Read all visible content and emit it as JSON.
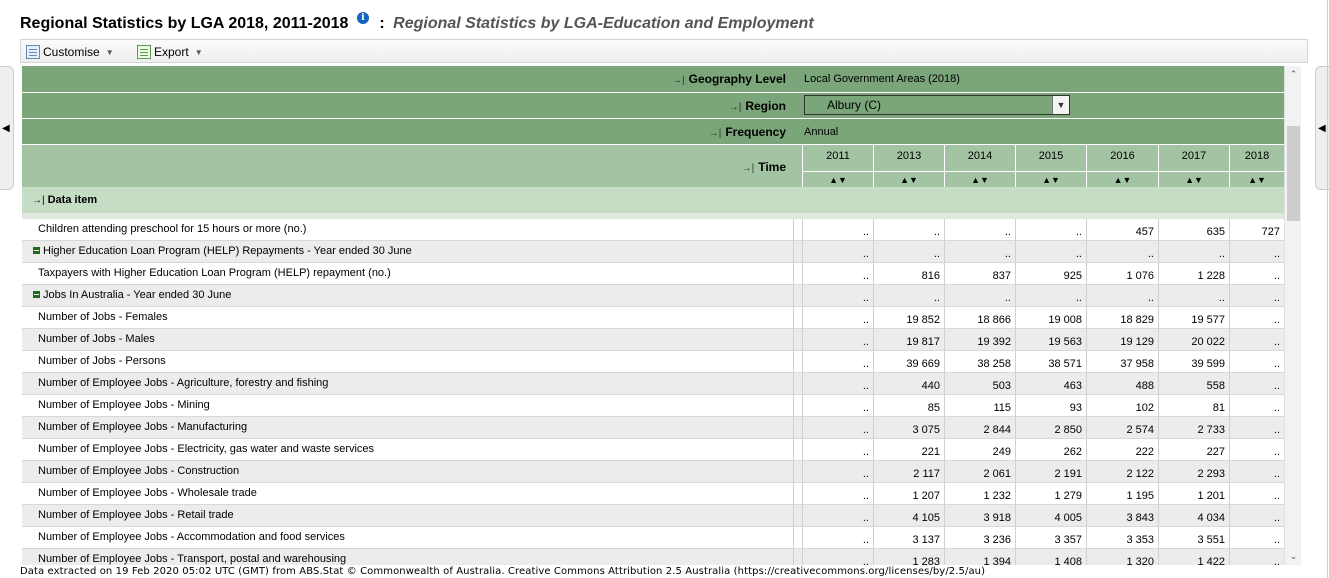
{
  "title": {
    "main": "Regional Statistics by LGA 2018, 2011-2018",
    "separator": ":",
    "subtitle": "Regional Statistics by LGA-Education and Employment",
    "info_icon": "i"
  },
  "toolbar": {
    "customise_label": "Customise",
    "export_label": "Export",
    "caret": "▼"
  },
  "side_tabs": {
    "left_arrow": "◀",
    "right_arrow": "◀"
  },
  "header": {
    "pin": "→|",
    "geography_label": "Geography Level",
    "geography_value": "Local Government Areas (2018)",
    "region_label": "Region",
    "region_value": "Albury (C)",
    "region_arrow": "▼",
    "frequency_label": "Frequency",
    "frequency_value": "Annual",
    "time_label": "Time",
    "sort_glyph": "▲▼",
    "years": [
      "2011",
      "2013",
      "2014",
      "2015",
      "2016",
      "2017",
      "2018"
    ]
  },
  "data_item_label": "Data item",
  "rows": [
    {
      "name": "Children attending preschool for 15 hours or more (no.)",
      "group": false,
      "values": [
        "..",
        "..",
        "..",
        "..",
        "457",
        "635",
        "727"
      ]
    },
    {
      "name": "Higher Education Loan Program (HELP) Repayments - Year ended 30 June",
      "group": true,
      "values": [
        "..",
        "..",
        "..",
        "..",
        "..",
        "..",
        ".."
      ]
    },
    {
      "name": "Taxpayers with Higher Education Loan Program (HELP) repayment (no.)",
      "group": false,
      "values": [
        "..",
        "816",
        "837",
        "925",
        "1 076",
        "1 228",
        ".."
      ]
    },
    {
      "name": "Jobs In Australia - Year ended 30 June",
      "group": true,
      "values": [
        "..",
        "..",
        "..",
        "..",
        "..",
        "..",
        ".."
      ]
    },
    {
      "name": "Number of Jobs - Females",
      "group": false,
      "values": [
        "..",
        "19 852",
        "18 866",
        "19 008",
        "18 829",
        "19 577",
        ".."
      ]
    },
    {
      "name": "Number of Jobs - Males",
      "group": false,
      "values": [
        "..",
        "19 817",
        "19 392",
        "19 563",
        "19 129",
        "20 022",
        ".."
      ]
    },
    {
      "name": "Number of Jobs - Persons",
      "group": false,
      "values": [
        "..",
        "39 669",
        "38 258",
        "38 571",
        "37 958",
        "39 599",
        ".."
      ]
    },
    {
      "name": "Number of Employee Jobs - Agriculture, forestry and fishing",
      "group": false,
      "values": [
        "..",
        "440",
        "503",
        "463",
        "488",
        "558",
        ".."
      ]
    },
    {
      "name": "Number of Employee Jobs - Mining",
      "group": false,
      "values": [
        "..",
        "85",
        "115",
        "93",
        "102",
        "81",
        ".."
      ]
    },
    {
      "name": "Number of Employee Jobs - Manufacturing",
      "group": false,
      "values": [
        "..",
        "3 075",
        "2 844",
        "2 850",
        "2 574",
        "2 733",
        ".."
      ]
    },
    {
      "name": "Number of Employee Jobs - Electricity, gas water and waste services",
      "group": false,
      "values": [
        "..",
        "221",
        "249",
        "262",
        "222",
        "227",
        ".."
      ]
    },
    {
      "name": "Number of Employee Jobs - Construction",
      "group": false,
      "values": [
        "..",
        "2 117",
        "2 061",
        "2 191",
        "2 122",
        "2 293",
        ".."
      ]
    },
    {
      "name": "Number of Employee Jobs - Wholesale trade",
      "group": false,
      "values": [
        "..",
        "1 207",
        "1 232",
        "1 279",
        "1 195",
        "1 201",
        ".."
      ]
    },
    {
      "name": "Number of Employee Jobs - Retail trade",
      "group": false,
      "values": [
        "..",
        "4 105",
        "3 918",
        "4 005",
        "3 843",
        "4 034",
        ".."
      ]
    },
    {
      "name": "Number of Employee Jobs - Accommodation and food services",
      "group": false,
      "values": [
        "..",
        "3 137",
        "3 236",
        "3 357",
        "3 353",
        "3 551",
        ".."
      ]
    },
    {
      "name": "Number of Employee Jobs - Transport, postal and warehousing",
      "group": false,
      "values": [
        "..",
        "1 283",
        "1 394",
        "1 408",
        "1 320",
        "1 422",
        ".."
      ]
    }
  ],
  "scrollbar": {
    "up": "⌃",
    "down": "⌄"
  },
  "footer": "Data extracted on 19 Feb 2020 05:02 UTC (GMT) from ABS.Stat © Commonwealth of Australia. Creative Commons Attribution 2.5 Australia (https://creativecommons.org/licenses/by/2.5/au)",
  "icons": {
    "customise": "customise-icon",
    "export": "export-icon",
    "info": "info-icon",
    "collapse": "minus-icon",
    "pin": "pin-icon"
  }
}
